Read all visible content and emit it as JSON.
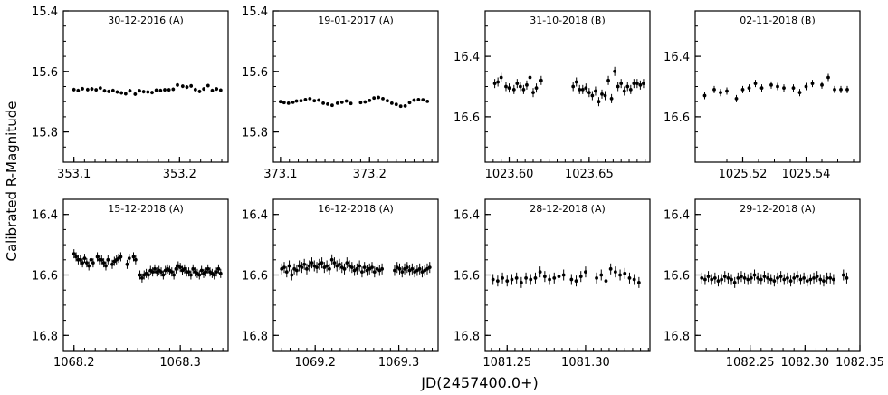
{
  "figure": {
    "ylabel": "Calibrated R-Magnitude",
    "xlabel": "JD(2457400.0+)"
  },
  "chart_data": [
    {
      "type": "scatter",
      "title": "30-12-2016 (A)",
      "ylim": [
        15.9,
        15.4
      ],
      "xlim": [
        353.09,
        353.246
      ],
      "yticks": [
        "15.4",
        "15.6",
        "15.8"
      ],
      "ytick_values": [
        15.4,
        15.6,
        15.8
      ],
      "xticks": [
        "353.1",
        "353.2"
      ],
      "xtick_values": [
        353.1,
        353.2
      ],
      "x": [
        353.1,
        353.104,
        353.108,
        353.113,
        353.117,
        353.121,
        353.125,
        353.129,
        353.133,
        353.137,
        353.141,
        353.145,
        353.149,
        353.153,
        353.158,
        353.162,
        353.166,
        353.17,
        353.174,
        353.178,
        353.182,
        353.186,
        353.19,
        353.194,
        353.198,
        353.203,
        353.207,
        353.211,
        353.215,
        353.219,
        353.223,
        353.227,
        353.231,
        353.235,
        353.239
      ],
      "y": [
        15.66,
        15.663,
        15.657,
        15.66,
        15.658,
        15.661,
        15.655,
        15.664,
        15.666,
        15.663,
        15.668,
        15.671,
        15.674,
        15.664,
        15.675,
        15.664,
        15.667,
        15.668,
        15.67,
        15.662,
        15.663,
        15.661,
        15.661,
        15.659,
        15.645,
        15.649,
        15.652,
        15.648,
        15.66,
        15.666,
        15.658,
        15.647,
        15.663,
        15.658,
        15.662
      ],
      "err": 0.006
    },
    {
      "type": "scatter",
      "title": "19-01-2017 (A)",
      "ylim": [
        15.9,
        15.4
      ],
      "xlim": [
        373.092,
        373.277
      ],
      "yticks": [
        "15.4",
        "15.6",
        "15.8"
      ],
      "ytick_values": [
        15.4,
        15.6,
        15.8
      ],
      "xticks": [
        "373.1",
        "373.2"
      ],
      "xtick_values": [
        373.1,
        373.2
      ],
      "x": [
        373.1,
        373.104,
        373.109,
        373.114,
        373.118,
        373.123,
        373.128,
        373.133,
        373.138,
        373.143,
        373.148,
        373.153,
        373.158,
        373.164,
        373.169,
        373.174,
        373.179,
        373.19,
        373.195,
        373.2,
        373.205,
        373.21,
        373.215,
        373.22,
        373.225,
        373.23,
        373.235,
        373.24,
        373.245,
        373.25,
        373.255,
        373.26,
        373.265
      ],
      "y": [
        15.7,
        15.703,
        15.705,
        15.702,
        15.698,
        15.697,
        15.693,
        15.69,
        15.697,
        15.695,
        15.705,
        15.708,
        15.712,
        15.705,
        15.702,
        15.698,
        15.706,
        15.703,
        15.701,
        15.696,
        15.688,
        15.686,
        15.69,
        15.697,
        15.705,
        15.709,
        15.715,
        15.714,
        15.703,
        15.695,
        15.693,
        15.694,
        15.699
      ],
      "err": 0.005
    },
    {
      "type": "scatter",
      "title": "31-10-2018 (B)",
      "ylim": [
        16.75,
        16.25
      ],
      "xlim": [
        1023.585,
        1023.688
      ],
      "yticks": [
        "16.4",
        "16.6"
      ],
      "ytick_values": [
        16.4,
        16.6
      ],
      "xticks": [
        "1023.60",
        "1023.65"
      ],
      "xtick_values": [
        1023.6,
        1023.65
      ],
      "x": [
        1023.591,
        1023.593,
        1023.595,
        1023.598,
        1023.6,
        1023.603,
        1023.605,
        1023.607,
        1023.609,
        1023.611,
        1023.613,
        1023.615,
        1023.617,
        1023.62,
        1023.64,
        1023.642,
        1023.644,
        1023.646,
        1023.648,
        1023.65,
        1023.652,
        1023.654,
        1023.656,
        1023.658,
        1023.66,
        1023.662,
        1023.664,
        1023.666,
        1023.668,
        1023.67,
        1023.672,
        1023.674,
        1023.676,
        1023.678,
        1023.68,
        1023.682,
        1023.684
      ],
      "y": [
        16.49,
        16.485,
        16.47,
        16.5,
        16.505,
        16.51,
        16.49,
        16.5,
        16.51,
        16.495,
        16.47,
        16.52,
        16.505,
        16.48,
        16.5,
        16.485,
        16.51,
        16.51,
        16.505,
        16.52,
        16.53,
        16.515,
        16.55,
        16.525,
        16.53,
        16.48,
        16.54,
        16.45,
        16.5,
        16.49,
        16.515,
        16.5,
        16.51,
        16.49,
        16.49,
        16.495,
        16.49
      ],
      "err": 0.015
    },
    {
      "type": "scatter",
      "title": "02-11-2018 (B)",
      "ylim": [
        16.75,
        16.25
      ],
      "xlim": [
        1025.505,
        1025.557
      ],
      "yticks": [
        "16.4",
        "16.6"
      ],
      "ytick_values": [
        16.4,
        16.6
      ],
      "xticks": [
        "1025.52",
        "1025.54"
      ],
      "xtick_values": [
        1025.52,
        1025.54
      ],
      "x": [
        1025.508,
        1025.511,
        1025.513,
        1025.515,
        1025.518,
        1025.52,
        1025.522,
        1025.524,
        1025.526,
        1025.529,
        1025.531,
        1025.533,
        1025.536,
        1025.538,
        1025.54,
        1025.542,
        1025.545,
        1025.547,
        1025.549,
        1025.551,
        1025.553
      ],
      "y": [
        16.53,
        16.51,
        16.52,
        16.515,
        16.54,
        16.51,
        16.505,
        16.49,
        16.505,
        16.495,
        16.5,
        16.505,
        16.505,
        16.52,
        16.5,
        16.49,
        16.495,
        16.47,
        16.51,
        16.51,
        16.51
      ],
      "err": 0.012
    },
    {
      "type": "scatter",
      "title": "15-12-2018 (A)",
      "ylim": [
        16.85,
        16.35
      ],
      "xlim": [
        1068.19,
        1068.345
      ],
      "yticks": [
        "16.4",
        "16.6",
        "16.8"
      ],
      "ytick_values": [
        16.4,
        16.6,
        16.8
      ],
      "xticks": [
        "1068.2",
        "1068.3"
      ],
      "xtick_values": [
        1068.2,
        1068.3
      ],
      "x": [
        1068.2,
        1068.202,
        1068.204,
        1068.206,
        1068.208,
        1068.21,
        1068.212,
        1068.214,
        1068.216,
        1068.218,
        1068.222,
        1068.224,
        1068.226,
        1068.228,
        1068.23,
        1068.232,
        1068.236,
        1068.238,
        1068.24,
        1068.242,
        1068.244,
        1068.25,
        1068.252,
        1068.256,
        1068.258,
        1068.262,
        1068.264,
        1068.266,
        1068.268,
        1068.27,
        1068.272,
        1068.274,
        1068.276,
        1068.278,
        1068.28,
        1068.282,
        1068.284,
        1068.286,
        1068.288,
        1068.29,
        1068.292,
        1068.294,
        1068.296,
        1068.298,
        1068.3,
        1068.302,
        1068.304,
        1068.306,
        1068.308,
        1068.31,
        1068.312,
        1068.314,
        1068.316,
        1068.318,
        1068.32,
        1068.322,
        1068.324,
        1068.326,
        1068.328,
        1068.33,
        1068.332,
        1068.334,
        1068.336,
        1068.338
      ],
      "y": [
        16.53,
        16.54,
        16.55,
        16.55,
        16.56,
        16.545,
        16.56,
        16.57,
        16.55,
        16.56,
        16.54,
        16.55,
        16.55,
        16.56,
        16.57,
        16.55,
        16.565,
        16.555,
        16.55,
        16.545,
        16.54,
        16.565,
        16.545,
        16.54,
        16.55,
        16.6,
        16.61,
        16.6,
        16.595,
        16.6,
        16.585,
        16.59,
        16.58,
        16.59,
        16.585,
        16.59,
        16.6,
        16.585,
        16.58,
        16.585,
        16.59,
        16.6,
        16.58,
        16.57,
        16.575,
        16.585,
        16.58,
        16.59,
        16.59,
        16.6,
        16.58,
        16.59,
        16.595,
        16.6,
        16.585,
        16.595,
        16.59,
        16.58,
        16.59,
        16.595,
        16.6,
        16.59,
        16.58,
        16.595
      ],
      "err": 0.015
    },
    {
      "type": "scatter",
      "title": "16-12-2018 (A)",
      "ylim": [
        16.85,
        16.35
      ],
      "xlim": [
        1069.15,
        1069.347
      ],
      "yticks": [
        "16.4",
        "16.6",
        "16.8"
      ],
      "ytick_values": [
        16.4,
        16.6,
        16.8
      ],
      "xticks": [
        "1069.2",
        "1069.3"
      ],
      "xtick_values": [
        1069.2,
        1069.3
      ],
      "x": [
        1069.16,
        1069.163,
        1069.166,
        1069.169,
        1069.172,
        1069.175,
        1069.178,
        1069.181,
        1069.184,
        1069.187,
        1069.19,
        1069.193,
        1069.196,
        1069.199,
        1069.202,
        1069.205,
        1069.208,
        1069.211,
        1069.214,
        1069.217,
        1069.22,
        1069.223,
        1069.226,
        1069.229,
        1069.232,
        1069.235,
        1069.238,
        1069.241,
        1069.244,
        1069.247,
        1069.25,
        1069.253,
        1069.256,
        1069.259,
        1069.262,
        1069.265,
        1069.268,
        1069.271,
        1069.274,
        1069.277,
        1069.28,
        1069.295,
        1069.298,
        1069.301,
        1069.304,
        1069.307,
        1069.31,
        1069.313,
        1069.316,
        1069.319,
        1069.322,
        1069.325,
        1069.328,
        1069.331,
        1069.334,
        1069.337
      ],
      "y": [
        16.58,
        16.575,
        16.59,
        16.57,
        16.6,
        16.58,
        16.585,
        16.57,
        16.575,
        16.565,
        16.58,
        16.57,
        16.56,
        16.57,
        16.575,
        16.565,
        16.56,
        16.575,
        16.57,
        16.58,
        16.55,
        16.56,
        16.57,
        16.565,
        16.575,
        16.58,
        16.56,
        16.57,
        16.575,
        16.585,
        16.58,
        16.57,
        16.59,
        16.575,
        16.585,
        16.58,
        16.575,
        16.59,
        16.58,
        16.585,
        16.58,
        16.585,
        16.575,
        16.58,
        16.59,
        16.58,
        16.575,
        16.585,
        16.58,
        16.59,
        16.585,
        16.58,
        16.59,
        16.585,
        16.58,
        16.575
      ],
      "err": 0.018
    },
    {
      "type": "scatter",
      "title": "28-12-2018 (A)",
      "ylim": [
        16.85,
        16.35
      ],
      "xlim": [
        1081.236,
        1081.341
      ],
      "yticks": [
        "16.4",
        "16.6",
        "16.8"
      ],
      "ytick_values": [
        16.4,
        16.6,
        16.8
      ],
      "xticks": [
        "1081.25",
        "1081.30"
      ],
      "xtick_values": [
        1081.25,
        1081.3
      ],
      "x": [
        1081.241,
        1081.244,
        1081.247,
        1081.25,
        1081.253,
        1081.256,
        1081.259,
        1081.262,
        1081.265,
        1081.268,
        1081.271,
        1081.274,
        1081.277,
        1081.28,
        1081.283,
        1081.286,
        1081.291,
        1081.294,
        1081.297,
        1081.3,
        1081.307,
        1081.31,
        1081.313,
        1081.316,
        1081.319,
        1081.322,
        1081.325,
        1081.328,
        1081.331,
        1081.334
      ],
      "y": [
        16.615,
        16.62,
        16.61,
        16.62,
        16.615,
        16.61,
        16.625,
        16.61,
        16.615,
        16.61,
        16.59,
        16.605,
        16.615,
        16.61,
        16.605,
        16.6,
        16.615,
        16.62,
        16.605,
        16.59,
        16.61,
        16.6,
        16.62,
        16.58,
        16.59,
        16.6,
        16.595,
        16.61,
        16.615,
        16.625
      ],
      "err": 0.018
    },
    {
      "type": "scatter",
      "title": "29-12-2018 (A)",
      "ylim": [
        16.85,
        16.35
      ],
      "xlim": [
        1082.2,
        1082.35
      ],
      "yticks": [
        "16.4",
        "16.6",
        "16.8"
      ],
      "ytick_values": [
        16.4,
        16.6,
        16.8
      ],
      "xticks": [
        "1082.25",
        "1082.30",
        "1082.35"
      ],
      "xtick_values": [
        1082.25,
        1082.3,
        1082.35
      ],
      "x": [
        1082.206,
        1082.209,
        1082.212,
        1082.215,
        1082.218,
        1082.221,
        1082.224,
        1082.227,
        1082.23,
        1082.233,
        1082.236,
        1082.239,
        1082.242,
        1082.245,
        1082.248,
        1082.251,
        1082.254,
        1082.257,
        1082.26,
        1082.263,
        1082.266,
        1082.269,
        1082.272,
        1082.275,
        1082.278,
        1082.281,
        1082.284,
        1082.287,
        1082.29,
        1082.293,
        1082.296,
        1082.299,
        1082.302,
        1082.305,
        1082.308,
        1082.311,
        1082.314,
        1082.317,
        1082.32,
        1082.323,
        1082.326,
        1082.335,
        1082.338
      ],
      "y": [
        16.61,
        16.615,
        16.605,
        16.615,
        16.61,
        16.62,
        16.615,
        16.605,
        16.61,
        16.615,
        16.625,
        16.61,
        16.605,
        16.61,
        16.615,
        16.61,
        16.6,
        16.61,
        16.615,
        16.605,
        16.61,
        16.615,
        16.62,
        16.61,
        16.605,
        16.615,
        16.61,
        16.62,
        16.61,
        16.605,
        16.615,
        16.61,
        16.62,
        16.615,
        16.61,
        16.605,
        16.615,
        16.62,
        16.61,
        16.61,
        16.615,
        16.6,
        16.61
      ],
      "err": 0.018
    }
  ]
}
